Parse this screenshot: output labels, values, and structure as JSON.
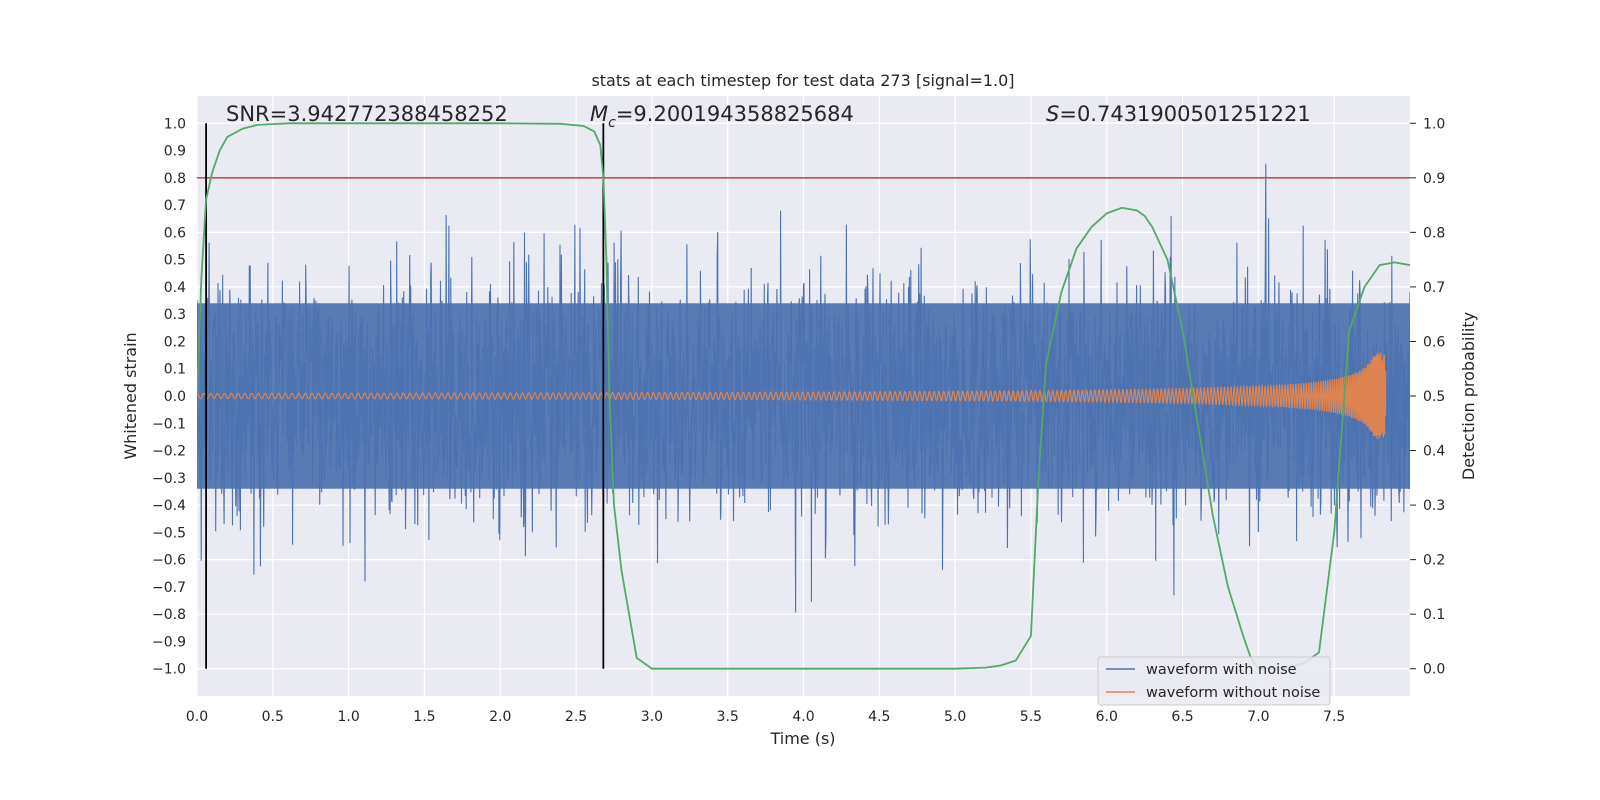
{
  "chart_data": {
    "type": "line",
    "title": "stats at each timestep for test data 273 [signal=1.0]",
    "xlabel": "Time (s)",
    "ylabel": "Whitened strain",
    "y2label": "Detection probability",
    "xlim": [
      0.0,
      8.0
    ],
    "ylim": [
      -1.1,
      1.1
    ],
    "y2lim": [
      -0.05,
      1.05
    ],
    "xticks": [
      0.0,
      0.5,
      1.0,
      1.5,
      2.0,
      2.5,
      3.0,
      3.5,
      4.0,
      4.5,
      5.0,
      5.5,
      6.0,
      6.5,
      7.0,
      7.5
    ],
    "yticks": [
      1.0,
      0.9,
      0.8,
      0.7,
      0.6,
      0.5,
      0.4,
      0.3,
      0.2,
      0.1,
      0.0,
      -0.1,
      -0.2,
      -0.3,
      -0.4,
      -0.5,
      -0.6,
      -0.7,
      -0.8,
      -0.9,
      -1.0
    ],
    "y2ticks": [
      1.0,
      0.9,
      0.8,
      0.7,
      0.6,
      0.5,
      0.4,
      0.3,
      0.2,
      0.1,
      0.0
    ],
    "annotations": {
      "snr": "SNR=3.942772388458252",
      "mc_symbol": "M",
      "mc_sub": "c",
      "mc_value": "=9.200194358825684",
      "s_symbol": "S",
      "s_value": "=0.7431900501251221"
    },
    "series": [
      {
        "name": "waveform with noise",
        "color": "#4c72b0",
        "kind": "noisy strain, amplitude ~ ±0.4 typical, peaks up to ±1.0",
        "t_range": [
          0.0,
          8.0
        ]
      },
      {
        "name": "waveform without noise",
        "color": "#dd8452",
        "kind": "inspiral chirp, amplitude growing from 0.01 to ~0.16, merger at t≈7.84",
        "t_range": [
          0.0,
          7.84
        ]
      },
      {
        "name": "detection probability",
        "color": "#55a868",
        "axis": "right",
        "x": [
          0.0,
          0.03,
          0.06,
          0.1,
          0.15,
          0.2,
          0.3,
          0.4,
          0.6,
          1.0,
          2.0,
          2.4,
          2.55,
          2.62,
          2.66,
          2.68,
          2.7,
          2.72,
          2.75,
          2.8,
          2.9,
          3.0,
          3.5,
          4.5,
          5.0,
          5.2,
          5.3,
          5.4,
          5.5,
          5.55,
          5.6,
          5.7,
          5.8,
          5.9,
          6.0,
          6.1,
          6.2,
          6.25,
          6.3,
          6.4,
          6.5,
          6.6,
          6.7,
          6.8,
          6.9,
          6.95,
          7.0,
          7.1,
          7.2,
          7.3,
          7.4,
          7.5,
          7.55,
          7.6,
          7.7,
          7.8,
          7.9,
          8.0
        ],
        "values": [
          0.5,
          0.72,
          0.86,
          0.91,
          0.95,
          0.975,
          0.99,
          0.997,
          1.0,
          1.0,
          1.0,
          0.999,
          0.995,
          0.985,
          0.96,
          0.9,
          0.75,
          0.5,
          0.3,
          0.18,
          0.02,
          0.0,
          0.0,
          0.0,
          0.0,
          0.002,
          0.006,
          0.015,
          0.06,
          0.35,
          0.56,
          0.69,
          0.77,
          0.81,
          0.835,
          0.845,
          0.84,
          0.83,
          0.81,
          0.75,
          0.62,
          0.45,
          0.28,
          0.15,
          0.06,
          0.02,
          0.0,
          0.0,
          0.003,
          0.01,
          0.03,
          0.25,
          0.44,
          0.62,
          0.7,
          0.74,
          0.745,
          0.74
        ]
      }
    ],
    "threshold": {
      "value": 0.9,
      "axis": "right",
      "color": "#c44e52"
    },
    "vlines": [
      0.06,
      2.68
    ],
    "legend": {
      "placement": "bottom-right",
      "entries": [
        "waveform with noise",
        "waveform without noise"
      ]
    }
  }
}
